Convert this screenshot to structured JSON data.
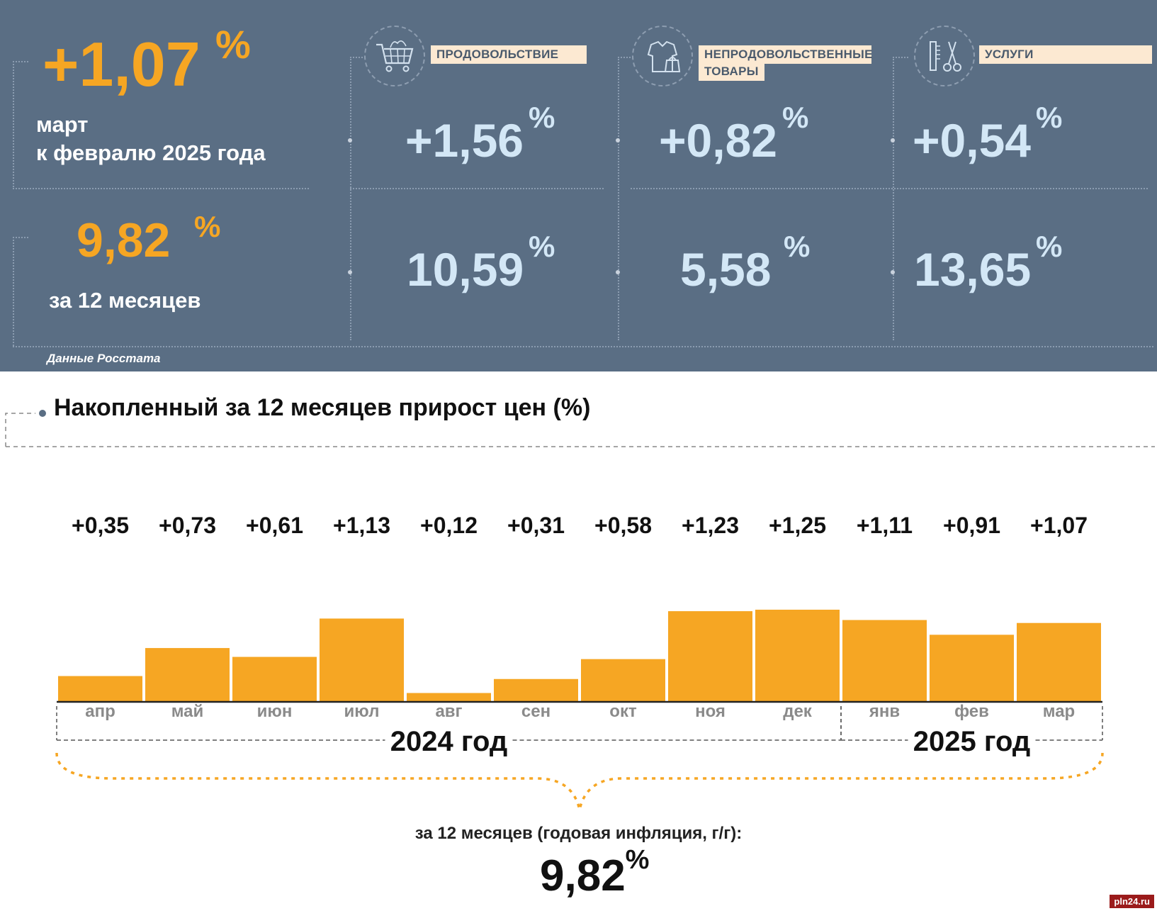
{
  "summary": {
    "monthly_value": "+1,07",
    "percent_sign": "%",
    "monthly_caption_line1": "март",
    "monthly_caption_line2": "к февралю 2025 года",
    "annual_value": "9,82",
    "annual_caption": "за 12 месяцев"
  },
  "categories": [
    {
      "label": "ПРОДОВОЛЬСТВИЕ",
      "icon": "shopping-cart-icon",
      "monthly": "+1,56",
      "annual": "10,59"
    },
    {
      "label_line1": "НЕПРОДОВОЛЬСТВЕННЫЕ",
      "label_line2": "ТОВАРЫ",
      "icon": "clothes-icon",
      "monthly": "+0,82",
      "annual": "5,58"
    },
    {
      "label": "УСЛУГИ",
      "icon": "scissors-comb-icon",
      "monthly": "+0,54",
      "annual": "13,65"
    }
  ],
  "source": "Данные Росстата",
  "colors": {
    "panel": "#5a6e84",
    "accent": "#f6a623",
    "light_blue": "#d3e7f6",
    "label_bg": "#fce9d2"
  },
  "chart_data": {
    "type": "bar",
    "title": "Накопленный за 12 месяцев прирост цен (%)",
    "categories": [
      "апр",
      "май",
      "июн",
      "июл",
      "авг",
      "сен",
      "окт",
      "ноя",
      "дек",
      "янв",
      "фев",
      "мар"
    ],
    "values": [
      0.35,
      0.73,
      0.61,
      1.13,
      0.12,
      0.31,
      0.58,
      1.23,
      1.25,
      1.11,
      0.91,
      1.07
    ],
    "value_labels": [
      "+0,35",
      "+0,73",
      "+0,61",
      "+1,13",
      "+0,12",
      "+0,31",
      "+0,58",
      "+1,23",
      "+1,25",
      "+1,11",
      "+0,91",
      "+1,07"
    ],
    "year_groups": [
      {
        "label": "2024 год",
        "months": [
          "апр",
          "май",
          "июн",
          "июл",
          "авг",
          "сен",
          "окт",
          "ноя",
          "дек"
        ]
      },
      {
        "label": "2025 год",
        "months": [
          "янв",
          "фев",
          "мар"
        ]
      }
    ],
    "bar_color": "#f6a623",
    "total_caption": "за 12 месяцев (годовая инфляция, г/г):",
    "total_value": "9,82",
    "total_unit": "%"
  },
  "watermark": "pln24.ru"
}
